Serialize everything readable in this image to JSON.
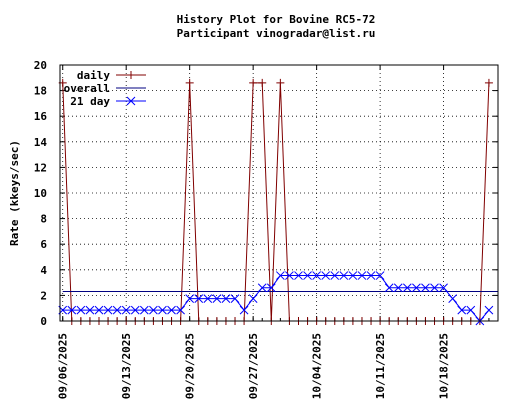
{
  "chart_data": {
    "type": "line",
    "title": "History Plot for Bovine RC5-72",
    "subtitle": "Participant vinogradar@list.ru",
    "xlabel": "",
    "ylabel": "Rate (kkeys/sec)",
    "ylim": [
      0,
      20
    ],
    "yticks": [
      "0",
      "2",
      "4",
      "6",
      "8",
      "10",
      "12",
      "14",
      "16",
      "18",
      "20"
    ],
    "xticks": [
      "09/06/2025",
      "09/13/2025",
      "09/20/2025",
      "09/27/2025",
      "10/04/2025",
      "10/11/2025",
      "10/18/2025"
    ],
    "grid": true,
    "legend_position": "top-left",
    "x_start": "2025-09-06",
    "x_end": "2025-10-24",
    "series": [
      {
        "name": "daily",
        "color": "#800000",
        "marker": "plus",
        "points": [
          [
            "2025-09-06",
            18.6
          ],
          [
            "2025-09-07",
            0
          ],
          [
            "2025-09-08",
            0
          ],
          [
            "2025-09-09",
            0
          ],
          [
            "2025-09-10",
            0
          ],
          [
            "2025-09-11",
            0
          ],
          [
            "2025-09-12",
            0
          ],
          [
            "2025-09-13",
            0
          ],
          [
            "2025-09-14",
            0
          ],
          [
            "2025-09-15",
            0
          ],
          [
            "2025-09-16",
            0
          ],
          [
            "2025-09-17",
            0
          ],
          [
            "2025-09-18",
            0
          ],
          [
            "2025-09-19",
            0
          ],
          [
            "2025-09-20",
            18.6
          ],
          [
            "2025-09-21",
            0
          ],
          [
            "2025-09-22",
            0
          ],
          [
            "2025-09-23",
            0
          ],
          [
            "2025-09-24",
            0
          ],
          [
            "2025-09-25",
            0
          ],
          [
            "2025-09-26",
            0
          ],
          [
            "2025-09-27",
            18.6
          ],
          [
            "2025-09-28",
            18.6
          ],
          [
            "2025-09-29",
            0
          ],
          [
            "2025-09-30",
            18.6
          ],
          [
            "2025-10-01",
            0
          ],
          [
            "2025-10-02",
            0
          ],
          [
            "2025-10-03",
            0
          ],
          [
            "2025-10-04",
            0
          ],
          [
            "2025-10-05",
            0
          ],
          [
            "2025-10-06",
            0
          ],
          [
            "2025-10-07",
            0
          ],
          [
            "2025-10-08",
            0
          ],
          [
            "2025-10-09",
            0
          ],
          [
            "2025-10-10",
            0
          ],
          [
            "2025-10-11",
            0
          ],
          [
            "2025-10-12",
            0
          ],
          [
            "2025-10-13",
            0
          ],
          [
            "2025-10-14",
            0
          ],
          [
            "2025-10-15",
            0
          ],
          [
            "2025-10-16",
            0
          ],
          [
            "2025-10-17",
            0
          ],
          [
            "2025-10-18",
            0
          ],
          [
            "2025-10-19",
            0
          ],
          [
            "2025-10-20",
            0
          ],
          [
            "2025-10-21",
            0
          ],
          [
            "2025-10-22",
            0
          ],
          [
            "2025-10-23",
            18.6
          ]
        ]
      },
      {
        "name": "overall",
        "color": "#000080",
        "marker": "none",
        "points": [
          [
            "2025-09-06",
            2.3
          ],
          [
            "2025-10-24",
            2.3
          ]
        ]
      },
      {
        "name": "21 day",
        "color": "#0000ff",
        "marker": "cross",
        "points": [
          [
            "2025-09-06",
            0.85
          ],
          [
            "2025-09-07",
            0.85
          ],
          [
            "2025-09-08",
            0.85
          ],
          [
            "2025-09-09",
            0.85
          ],
          [
            "2025-09-10",
            0.85
          ],
          [
            "2025-09-11",
            0.85
          ],
          [
            "2025-09-12",
            0.85
          ],
          [
            "2025-09-13",
            0.85
          ],
          [
            "2025-09-14",
            0.85
          ],
          [
            "2025-09-15",
            0.85
          ],
          [
            "2025-09-16",
            0.85
          ],
          [
            "2025-09-17",
            0.85
          ],
          [
            "2025-09-18",
            0.85
          ],
          [
            "2025-09-19",
            0.85
          ],
          [
            "2025-09-20",
            1.75
          ],
          [
            "2025-09-21",
            1.75
          ],
          [
            "2025-09-22",
            1.75
          ],
          [
            "2025-09-23",
            1.75
          ],
          [
            "2025-09-24",
            1.75
          ],
          [
            "2025-09-25",
            1.75
          ],
          [
            "2025-09-26",
            0.85
          ],
          [
            "2025-09-27",
            1.75
          ],
          [
            "2025-09-28",
            2.6
          ],
          [
            "2025-09-29",
            2.6
          ],
          [
            "2025-09-30",
            3.55
          ],
          [
            "2025-10-01",
            3.55
          ],
          [
            "2025-10-02",
            3.55
          ],
          [
            "2025-10-03",
            3.55
          ],
          [
            "2025-10-04",
            3.55
          ],
          [
            "2025-10-05",
            3.55
          ],
          [
            "2025-10-06",
            3.55
          ],
          [
            "2025-10-07",
            3.55
          ],
          [
            "2025-10-08",
            3.55
          ],
          [
            "2025-10-09",
            3.55
          ],
          [
            "2025-10-10",
            3.55
          ],
          [
            "2025-10-11",
            3.55
          ],
          [
            "2025-10-12",
            2.6
          ],
          [
            "2025-10-13",
            2.6
          ],
          [
            "2025-10-14",
            2.6
          ],
          [
            "2025-10-15",
            2.6
          ],
          [
            "2025-10-16",
            2.6
          ],
          [
            "2025-10-17",
            2.6
          ],
          [
            "2025-10-18",
            2.6
          ],
          [
            "2025-10-19",
            1.75
          ],
          [
            "2025-10-20",
            0.85
          ],
          [
            "2025-10-21",
            0.85
          ],
          [
            "2025-10-22",
            0.0
          ],
          [
            "2025-10-23",
            0.85
          ]
        ]
      }
    ]
  }
}
